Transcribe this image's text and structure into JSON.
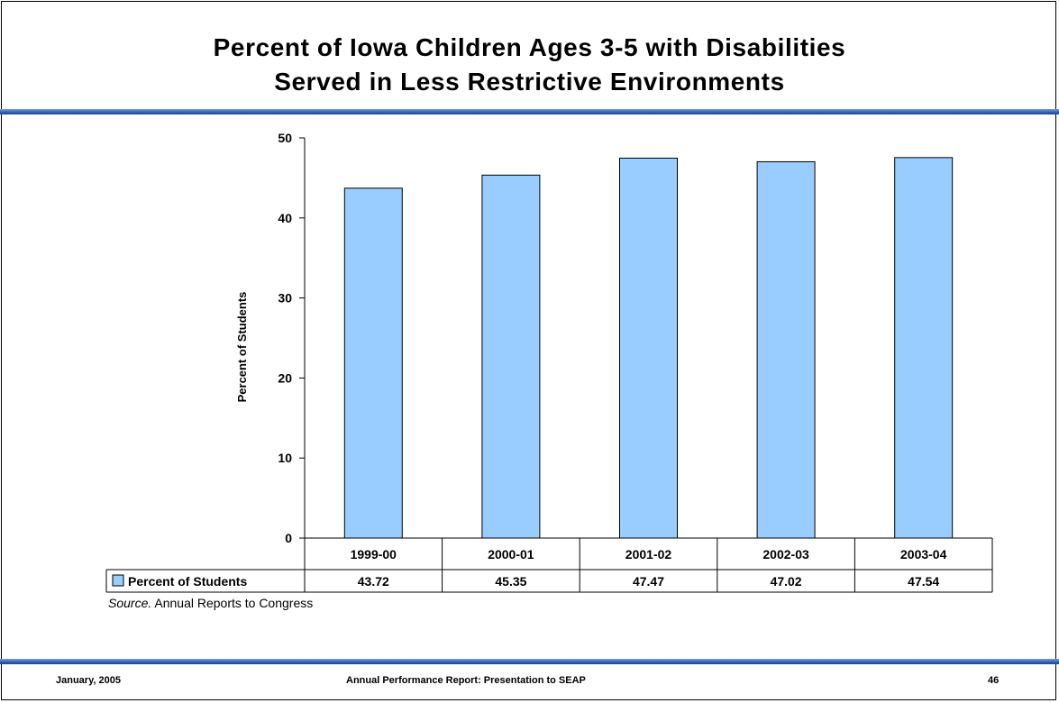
{
  "slide": {
    "title_line1": "Percent of Iowa Children Ages 3-5 with Disabilities",
    "title_line2": "Served in Less Restrictive Environments",
    "source_label": "Source.",
    "source_text": " Annual Reports to Congress",
    "footer_left": "January, 2005",
    "footer_center": "Annual Performance Report: Presentation to SEAP",
    "footer_right": "46"
  },
  "colors": {
    "bar_fill": "#99ccff",
    "rule_dark": "#1f3f8a",
    "rule_light": "#7aa0d8"
  },
  "chart_data": {
    "type": "bar",
    "title": "",
    "xlabel": "",
    "ylabel": "Percent of Students",
    "categories": [
      "1999-00",
      "2000-01",
      "2001-02",
      "2002-03",
      "2003-04"
    ],
    "series": [
      {
        "name": "Percent of Students",
        "values": [
          43.72,
          45.35,
          47.47,
          47.02,
          47.54
        ],
        "value_labels": [
          "43.72",
          "45.35",
          "47.47",
          "47.02",
          "47.54"
        ]
      }
    ],
    "ylim": [
      0,
      50
    ],
    "yticks": [
      0,
      10,
      20,
      30,
      40,
      50
    ],
    "grid": false,
    "legend": "data-table"
  }
}
